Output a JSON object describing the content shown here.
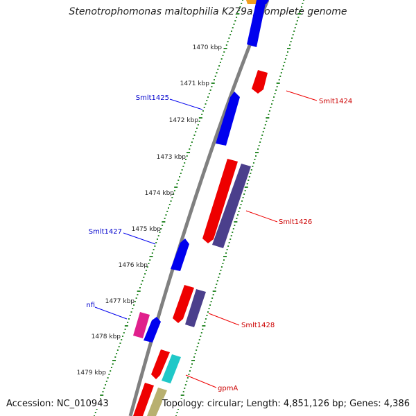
{
  "title": "Stenotrophomonas maltophilia K279a, complete genome",
  "footer": {
    "accession": "Accession: NC_010943",
    "summary": "Topology: circular; Length: 4,851,126 bp; Genes: 4,386"
  },
  "colors": {
    "backbone": "#808080",
    "tick_dots": "#2e8b2e",
    "forward_gene": "#0000ee",
    "reverse_gene": "#ee0000",
    "label_forward": "#0000cc",
    "label_reverse": "#cc0000",
    "purple_feature": "#4b3f8c",
    "pink_feature": "#e0208c",
    "cyan_feature": "#20c8c8",
    "olive_feature": "#b8b070"
  },
  "scale": {
    "unit": "kbp",
    "ticks": [
      "1470 kbp",
      "1471 kbp",
      "1472 kbp",
      "1473 kbp",
      "1474 kbp",
      "1475 kbp",
      "1476 kbp",
      "1477 kbp",
      "1478 kbp",
      "1479 kbp"
    ]
  },
  "gene_labels": [
    {
      "text": "Smlt1424",
      "strand": "reverse"
    },
    {
      "text": "Smlt1425",
      "strand": "forward"
    },
    {
      "text": "Smlt1426",
      "strand": "reverse"
    },
    {
      "text": "Smlt1427",
      "strand": "forward"
    },
    {
      "text": "nfi",
      "strand": "forward"
    },
    {
      "text": "Smlt1428",
      "strand": "reverse"
    },
    {
      "text": "gpmA",
      "strand": "reverse"
    }
  ]
}
